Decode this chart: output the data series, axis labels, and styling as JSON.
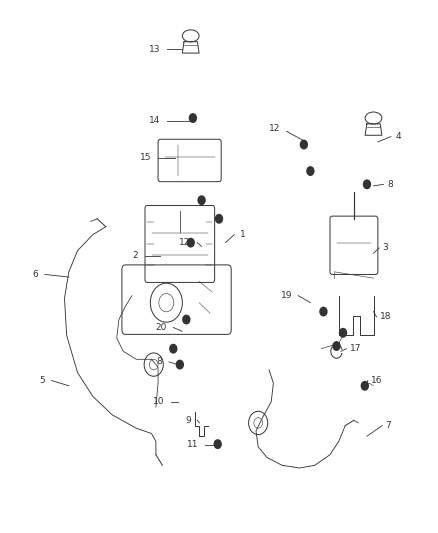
{
  "background_color": "#ffffff",
  "line_color": "#333333",
  "text_color": "#333333",
  "fig_width": 4.38,
  "fig_height": 5.33,
  "dpi": 100
}
